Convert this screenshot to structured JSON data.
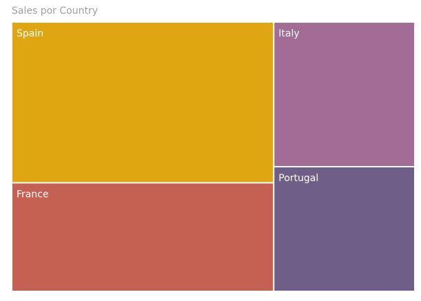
{
  "chart_data": {
    "type": "treemap",
    "title": "Sales por Country",
    "categories": [
      "Spain",
      "France",
      "Italy",
      "Portugal"
    ],
    "values": [
      38.8,
      26.2,
      18.8,
      16.2
    ],
    "colors": [
      "#e0a612",
      "#c46152",
      "#a26c96",
      "#6f5e87"
    ]
  }
}
